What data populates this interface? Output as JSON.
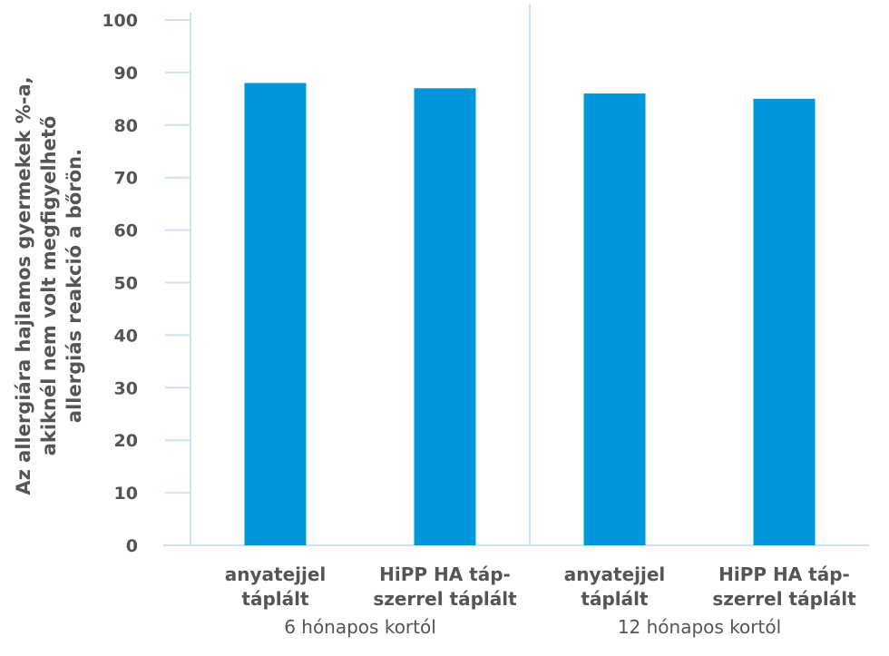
{
  "chart_data": {
    "type": "bar",
    "ylabel": [
      "Az allergiára hajlamos gyermekek %-a,",
      "akiknél nem volt megfigyelhető",
      "allergiás reakció a bőrön."
    ],
    "ylim": [
      0,
      100
    ],
    "yticks": [
      "0",
      "10",
      "20",
      "30",
      "40",
      "50",
      "60",
      "70",
      "80",
      "90",
      "100"
    ],
    "groups": [
      {
        "label": "6 hónapos kortól",
        "categories": [
          [
            "anyatejjel",
            "táplált"
          ],
          [
            "HiPP HA táp-",
            "szerrel táplált"
          ]
        ],
        "values": [
          88,
          87
        ]
      },
      {
        "label": "12 hónapos kortól",
        "categories": [
          [
            "anyatejjel",
            "táplált"
          ],
          [
            "HiPP HA táp-",
            "szerrel táplált"
          ]
        ],
        "values": [
          86,
          85
        ]
      }
    ],
    "bar_color": "#0096dc",
    "axis_color": "#cde3ef",
    "text_color": "#555555",
    "grid": false
  }
}
